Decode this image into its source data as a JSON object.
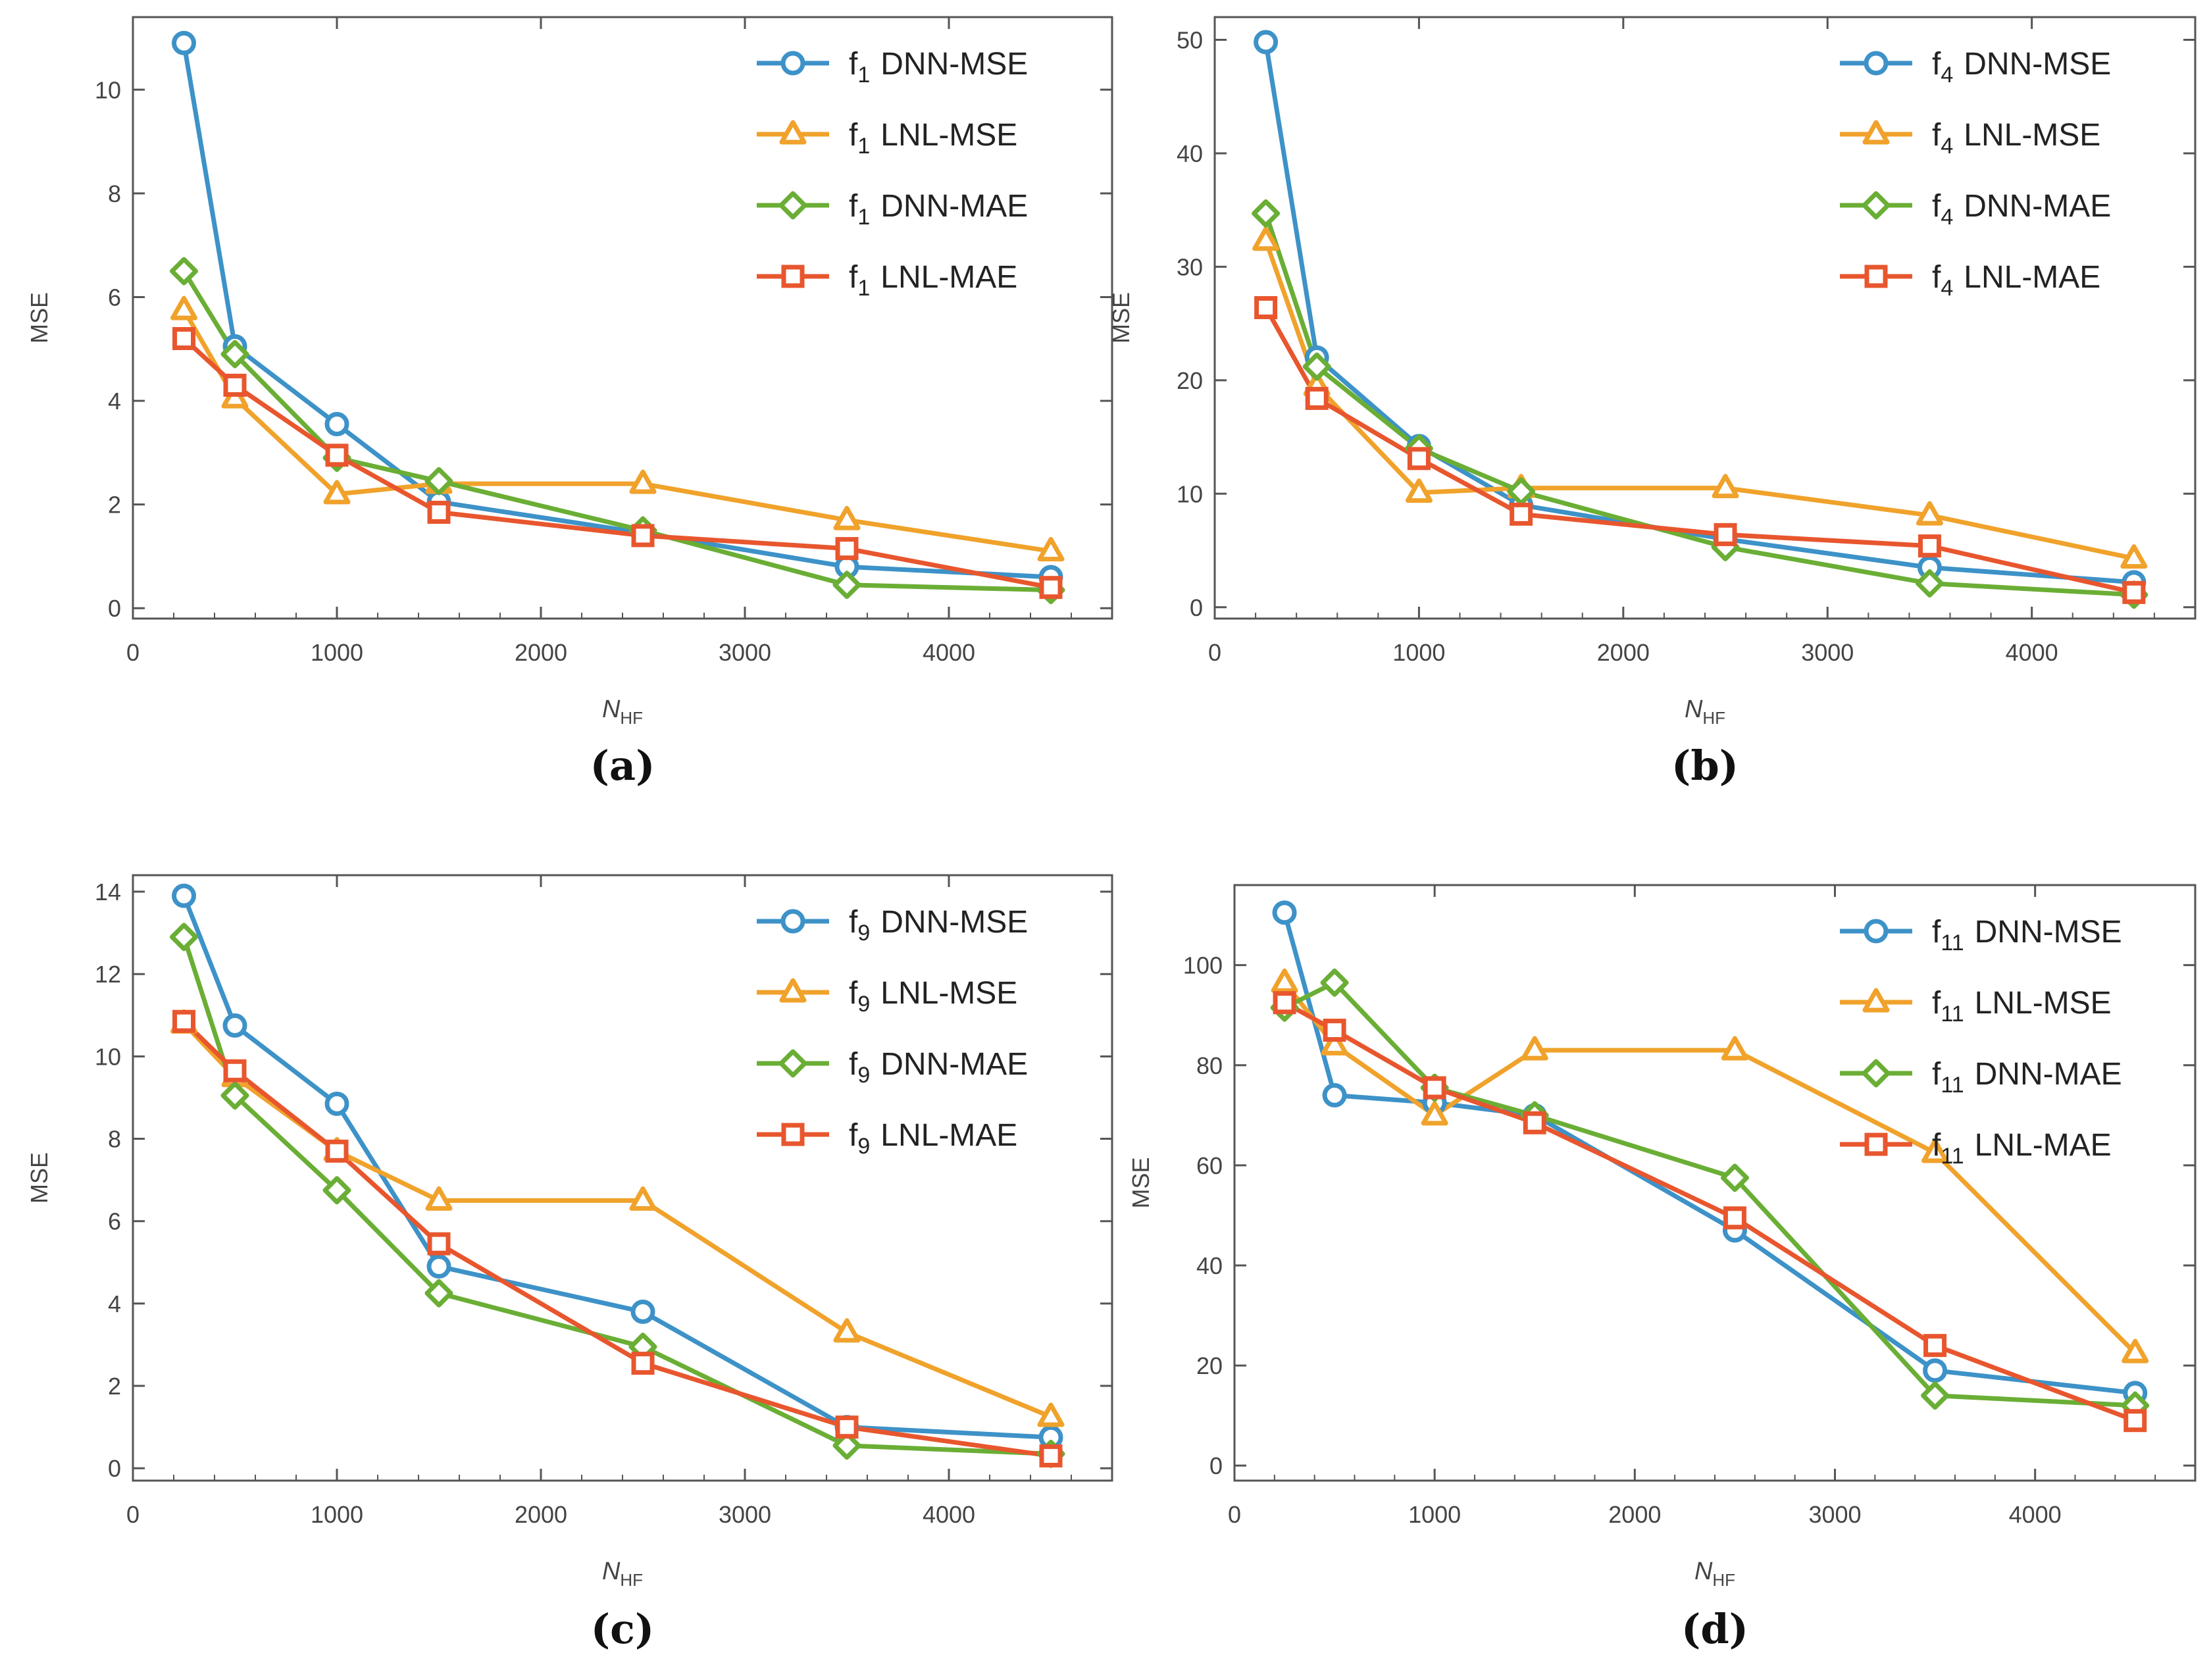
{
  "colors": {
    "dnn_mse": "#3d92c8",
    "lnl_mse": "#f0a22b",
    "dnn_mae": "#6aae35",
    "lnl_mae": "#e8562e",
    "frame": "#555555",
    "text": "#444444"
  },
  "chart_data": [
    {
      "type": "line",
      "caption": "(a)",
      "xlabel": "N",
      "xlabel_sub": "HF",
      "ylabel": "MSE",
      "xlim": [
        0,
        4800
      ],
      "ylim": [
        -0.2,
        11.4
      ],
      "xticks": [
        0,
        1000,
        2000,
        3000,
        4000
      ],
      "yticks": [
        0,
        2,
        4,
        6,
        8,
        10
      ],
      "x": [
        250,
        500,
        1000,
        1500,
        2500,
        3500,
        4500
      ],
      "legend_position": "top-right",
      "series": [
        {
          "name": "f1 DNN-MSE",
          "base": "f",
          "sub": "1",
          "label": "DNN-MSE",
          "marker": "circle",
          "color_key": "dnn_mse",
          "values": [
            10.9,
            5.05,
            3.55,
            2.05,
            1.45,
            0.8,
            0.6
          ]
        },
        {
          "name": "f1 LNL-MSE",
          "base": "f",
          "sub": "1",
          "label": "LNL-MSE",
          "marker": "triangle",
          "color_key": "lnl_mse",
          "values": [
            5.75,
            4.05,
            2.2,
            2.4,
            2.4,
            1.7,
            1.1
          ]
        },
        {
          "name": "f1 DNN-MAE",
          "base": "f",
          "sub": "1",
          "label": "DNN-MAE",
          "marker": "diamond",
          "color_key": "dnn_mae",
          "values": [
            6.5,
            4.9,
            2.9,
            2.45,
            1.5,
            0.45,
            0.35
          ]
        },
        {
          "name": "f1 LNL-MAE",
          "base": "f",
          "sub": "1",
          "label": "LNL-MAE",
          "marker": "square",
          "color_key": "lnl_mae",
          "values": [
            5.2,
            4.3,
            2.95,
            1.85,
            1.4,
            1.15,
            0.4
          ]
        }
      ]
    },
    {
      "type": "line",
      "caption": "(b)",
      "xlabel": "N",
      "xlabel_sub": "HF",
      "ylabel": "MSE",
      "xlim": [
        0,
        4800
      ],
      "ylim": [
        -1,
        52
      ],
      "xticks": [
        0,
        1000,
        2000,
        3000,
        4000
      ],
      "yticks": [
        0,
        10,
        20,
        30,
        40,
        50
      ],
      "x": [
        250,
        500,
        1000,
        1500,
        2500,
        3500,
        4500
      ],
      "legend_position": "top-right",
      "series": [
        {
          "name": "f4 DNN-MSE",
          "base": "f",
          "sub": "4",
          "label": "DNN-MSE",
          "marker": "circle",
          "color_key": "dnn_mse",
          "values": [
            49.8,
            22.0,
            14.2,
            9.0,
            6.0,
            3.5,
            2.2
          ]
        },
        {
          "name": "f4 LNL-MSE",
          "base": "f",
          "sub": "4",
          "label": "LNL-MSE",
          "marker": "triangle",
          "color_key": "lnl_mse",
          "values": [
            32.3,
            19.5,
            10.1,
            10.5,
            10.5,
            8.1,
            4.3
          ]
        },
        {
          "name": "f4 DNN-MAE",
          "base": "f",
          "sub": "4",
          "label": "DNN-MAE",
          "marker": "diamond",
          "color_key": "dnn_mae",
          "values": [
            34.7,
            21.2,
            14.0,
            10.2,
            5.3,
            2.1,
            1.1
          ]
        },
        {
          "name": "f4 LNL-MAE",
          "base": "f",
          "sub": "4",
          "label": "LNL-MAE",
          "marker": "square",
          "color_key": "lnl_mae",
          "values": [
            26.4,
            18.4,
            13.1,
            8.2,
            6.4,
            5.4,
            1.3
          ]
        }
      ]
    },
    {
      "type": "line",
      "caption": "(c)",
      "xlabel": "N",
      "xlabel_sub": "HF",
      "ylabel": "MSE",
      "xlim": [
        0,
        4800
      ],
      "ylim": [
        -0.3,
        14.4
      ],
      "xticks": [
        0,
        1000,
        2000,
        3000,
        4000
      ],
      "yticks": [
        0,
        2,
        4,
        6,
        8,
        10,
        12,
        14
      ],
      "x": [
        250,
        500,
        1000,
        1500,
        2500,
        3500,
        4500
      ],
      "legend_position": "top-right",
      "series": [
        {
          "name": "f9 DNN-MSE",
          "base": "f",
          "sub": "9",
          "label": "DNN-MSE",
          "marker": "circle",
          "color_key": "dnn_mse",
          "values": [
            13.9,
            10.75,
            8.85,
            4.9,
            3.8,
            1.0,
            0.75
          ]
        },
        {
          "name": "f9 LNL-MSE",
          "base": "f",
          "sub": "9",
          "label": "LNL-MSE",
          "marker": "triangle",
          "color_key": "lnl_mse",
          "values": [
            10.8,
            9.5,
            7.7,
            6.5,
            6.5,
            3.3,
            1.25
          ]
        },
        {
          "name": "f9 DNN-MAE",
          "base": "f",
          "sub": "9",
          "label": "DNN-MAE",
          "marker": "diamond",
          "color_key": "dnn_mae",
          "values": [
            12.9,
            9.05,
            6.75,
            4.25,
            2.95,
            0.55,
            0.35
          ]
        },
        {
          "name": "f9 LNL-MAE",
          "base": "f",
          "sub": "9",
          "label": "LNL-MAE",
          "marker": "square",
          "color_key": "lnl_mae",
          "values": [
            10.85,
            9.65,
            7.7,
            5.45,
            2.55,
            1.0,
            0.3
          ]
        }
      ]
    },
    {
      "type": "line",
      "caption": "(d)",
      "xlabel": "N",
      "xlabel_sub": "HF",
      "ylabel": "MSE",
      "xlim": [
        0,
        4800
      ],
      "ylim": [
        -3,
        116
      ],
      "xticks": [
        0,
        1000,
        2000,
        3000,
        4000
      ],
      "yticks": [
        0,
        20,
        40,
        60,
        80,
        100
      ],
      "x": [
        250,
        500,
        1000,
        1500,
        2500,
        3500,
        4500
      ],
      "legend_position": "top-right",
      "series": [
        {
          "name": "f11 DNN-MSE",
          "base": "f",
          "sub": "11",
          "label": "DNN-MSE",
          "marker": "circle",
          "color_key": "dnn_mse",
          "values": [
            110.5,
            74.0,
            72.5,
            70.0,
            47.0,
            19.0,
            14.5
          ]
        },
        {
          "name": "f11 LNL-MSE",
          "base": "f",
          "sub": "11",
          "label": "LNL-MSE",
          "marker": "triangle",
          "color_key": "lnl_mse",
          "values": [
            96.5,
            84.0,
            70.0,
            83.0,
            83.0,
            62.5,
            22.5
          ]
        },
        {
          "name": "f11 DNN-MAE",
          "base": "f",
          "sub": "11",
          "label": "DNN-MAE",
          "marker": "diamond",
          "color_key": "dnn_mae",
          "values": [
            91.5,
            96.5,
            75.5,
            70.0,
            57.5,
            14.0,
            12.0
          ]
        },
        {
          "name": "f11 LNL-MAE",
          "base": "f",
          "sub": "11",
          "label": "LNL-MAE",
          "marker": "square",
          "color_key": "lnl_mae",
          "values": [
            92.5,
            87.0,
            75.5,
            68.5,
            49.5,
            24.0,
            9.0
          ]
        }
      ]
    }
  ]
}
